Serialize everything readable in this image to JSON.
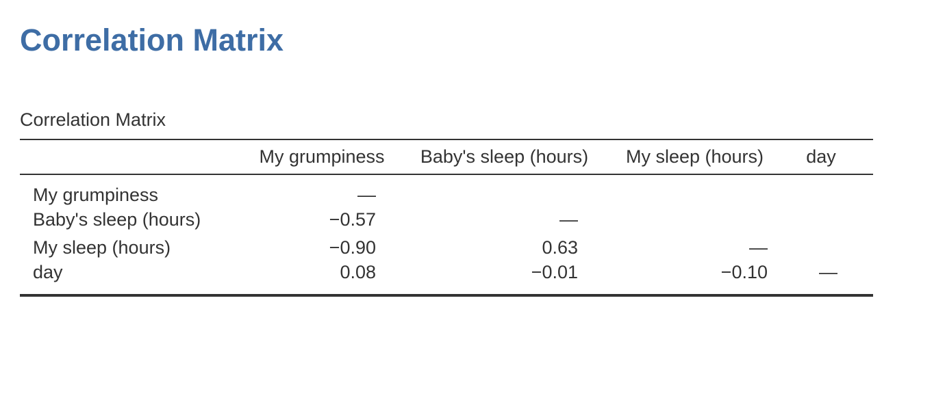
{
  "page": {
    "title": "Correlation Matrix",
    "title_color": "#3e6da5"
  },
  "table": {
    "caption": "Correlation Matrix",
    "columns": [
      "My grumpiness",
      "Baby's sleep (hours)",
      "My sleep (hours)",
      "day"
    ],
    "rows": [
      {
        "label": "My grumpiness",
        "cells": [
          "—",
          "",
          "",
          ""
        ]
      },
      {
        "label": "Baby's sleep (hours)",
        "cells": [
          "−0.57",
          "—",
          "",
          ""
        ]
      },
      {
        "label": "My sleep (hours)",
        "cells": [
          "−0.90",
          "0.63",
          "—",
          ""
        ]
      },
      {
        "label": "day",
        "cells": [
          "0.08",
          "−0.01",
          "−0.10",
          "—"
        ]
      }
    ]
  }
}
